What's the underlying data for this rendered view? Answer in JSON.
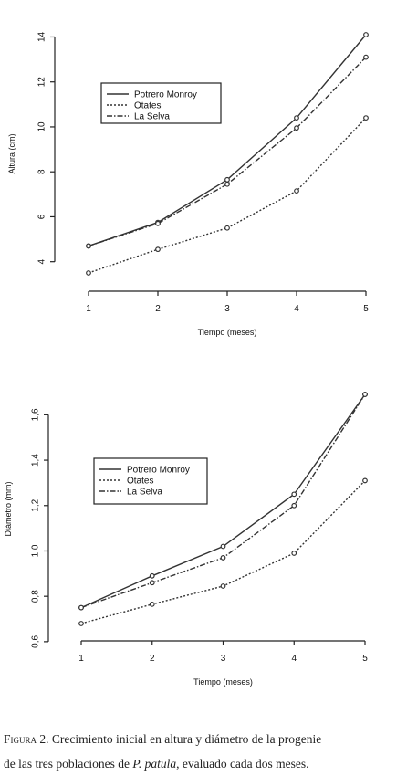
{
  "legend": [
    "Potrero Monroy",
    "Otates",
    "La Selva"
  ],
  "chart_data": [
    {
      "type": "line",
      "title": "",
      "xlabel": "Tiempo (meses)",
      "ylabel": "Altura (cm)",
      "x": [
        1,
        2,
        3,
        4,
        5
      ],
      "xlim": [
        1,
        5
      ],
      "ylim": [
        3.5,
        14.1
      ],
      "yticks": [
        4,
        6,
        8,
        10,
        12,
        14
      ],
      "ytick_labels": [
        "4",
        "6",
        "8",
        "10",
        "12",
        "14"
      ],
      "xtick_labels": [
        "1",
        "2",
        "3",
        "4",
        "5"
      ],
      "legend_position": "upper-left",
      "grid": false,
      "series": [
        {
          "name": "Potrero Monroy",
          "style": "solid",
          "values": [
            4.7,
            5.75,
            7.65,
            10.4,
            14.1
          ]
        },
        {
          "name": "Otates",
          "style": "dotted",
          "values": [
            3.5,
            4.55,
            5.5,
            7.15,
            10.4
          ]
        },
        {
          "name": "La Selva",
          "style": "dashdot",
          "values": [
            4.7,
            5.7,
            7.45,
            9.95,
            13.1
          ]
        }
      ]
    },
    {
      "type": "line",
      "title": "",
      "xlabel": "Tiempo (meses)",
      "ylabel": "Diámetro (mm)",
      "x": [
        1,
        2,
        3,
        4,
        5
      ],
      "xlim": [
        1,
        5
      ],
      "ylim": [
        0.68,
        1.69
      ],
      "yticks": [
        0.6,
        0.8,
        1.0,
        1.2,
        1.4,
        1.6
      ],
      "ytick_labels": [
        "0,6",
        "0,8",
        "1,0",
        "1,2",
        "1,4",
        "1,6"
      ],
      "xtick_labels": [
        "1",
        "2",
        "3",
        "4",
        "5"
      ],
      "legend_position": "center-left",
      "grid": false,
      "series": [
        {
          "name": "Potrero Monroy",
          "style": "solid",
          "values": [
            0.75,
            0.89,
            1.02,
            1.25,
            1.69
          ]
        },
        {
          "name": "Otates",
          "style": "dotted",
          "values": [
            0.68,
            0.765,
            0.845,
            0.99,
            1.31
          ]
        },
        {
          "name": "La Selva",
          "style": "dashdot",
          "values": [
            0.75,
            0.86,
            0.97,
            1.2,
            1.69
          ]
        }
      ]
    }
  ],
  "caption": {
    "label": "Figura 2.",
    "line1": "Crecimiento inicial en altura y diámetro de la progenie",
    "line2_a": "de las tres poblaciones de",
    "line2_species": "P. patula",
    "line2_b": ", evaluado cada dos meses."
  }
}
